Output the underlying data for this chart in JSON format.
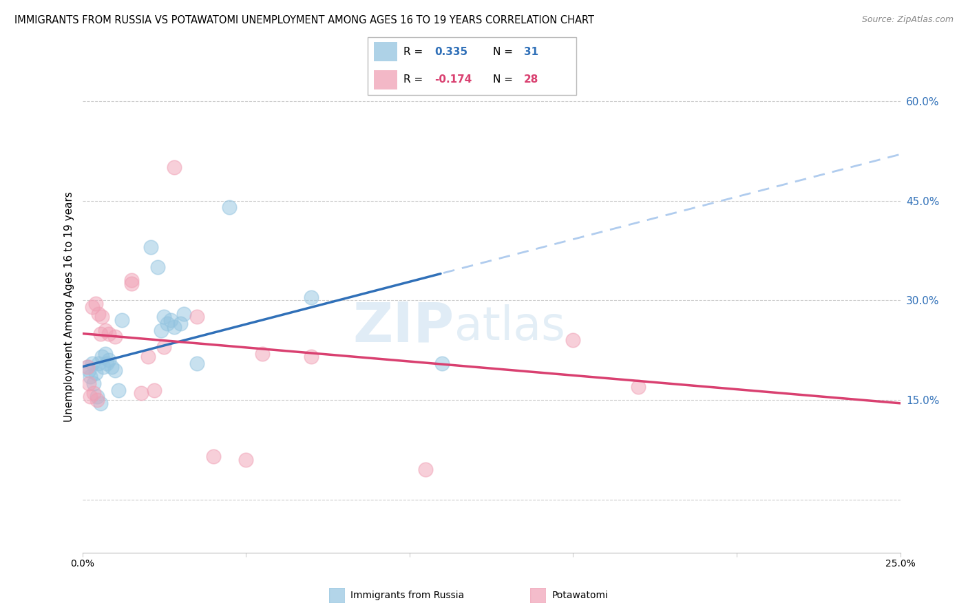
{
  "title": "IMMIGRANTS FROM RUSSIA VS POTAWATOMI UNEMPLOYMENT AMONG AGES 16 TO 19 YEARS CORRELATION CHART",
  "source": "Source: ZipAtlas.com",
  "ylabel": "Unemployment Among Ages 16 to 19 years",
  "xlim": [
    0.0,
    25.0
  ],
  "ylim": [
    -8.0,
    66.0
  ],
  "yticks": [
    0.0,
    15.0,
    30.0,
    45.0,
    60.0
  ],
  "ytick_labels": [
    "",
    "15.0%",
    "30.0%",
    "45.0%",
    "60.0%"
  ],
  "blue_color": "#93c4e0",
  "pink_color": "#f0a0b5",
  "blue_line_color": "#3070b8",
  "pink_line_color": "#d94070",
  "dashed_line_color": "#b0ccee",
  "blue_line_x0": 0.0,
  "blue_line_y0": 20.0,
  "blue_line_x1": 25.0,
  "blue_line_y1": 52.0,
  "blue_solid_end": 11.0,
  "pink_line_x0": 0.0,
  "pink_line_y0": 25.0,
  "pink_line_x1": 25.0,
  "pink_line_y1": 14.5,
  "blue_scatter_x": [
    0.15,
    0.2,
    0.25,
    0.3,
    0.35,
    0.4,
    0.45,
    0.5,
    0.55,
    0.6,
    0.65,
    0.7,
    0.75,
    0.8,
    0.9,
    1.0,
    1.1,
    1.2,
    2.1,
    2.3,
    2.5,
    2.6,
    2.7,
    2.8,
    3.0,
    3.1,
    3.5,
    4.5,
    7.0,
    11.0,
    2.4
  ],
  "blue_scatter_y": [
    20.0,
    19.5,
    18.5,
    20.5,
    17.5,
    19.0,
    15.5,
    20.5,
    14.5,
    21.5,
    20.0,
    22.0,
    20.5,
    21.0,
    20.0,
    19.5,
    16.5,
    27.0,
    38.0,
    35.0,
    27.5,
    26.5,
    27.0,
    26.0,
    26.5,
    28.0,
    20.5,
    44.0,
    30.5,
    20.5,
    25.5
  ],
  "pink_scatter_x": [
    0.15,
    0.2,
    0.25,
    0.3,
    0.35,
    0.4,
    0.45,
    0.5,
    0.55,
    0.6,
    0.7,
    0.8,
    1.0,
    1.5,
    1.8,
    2.0,
    2.2,
    2.5,
    2.8,
    3.5,
    4.0,
    5.0,
    5.5,
    7.0,
    10.5,
    15.0,
    17.0,
    1.5
  ],
  "pink_scatter_y": [
    20.0,
    17.5,
    15.5,
    29.0,
    16.0,
    29.5,
    15.0,
    28.0,
    25.0,
    27.5,
    25.5,
    25.0,
    24.5,
    32.5,
    16.0,
    21.5,
    16.5,
    23.0,
    50.0,
    27.5,
    6.5,
    6.0,
    22.0,
    21.5,
    4.5,
    24.0,
    17.0,
    33.0
  ]
}
